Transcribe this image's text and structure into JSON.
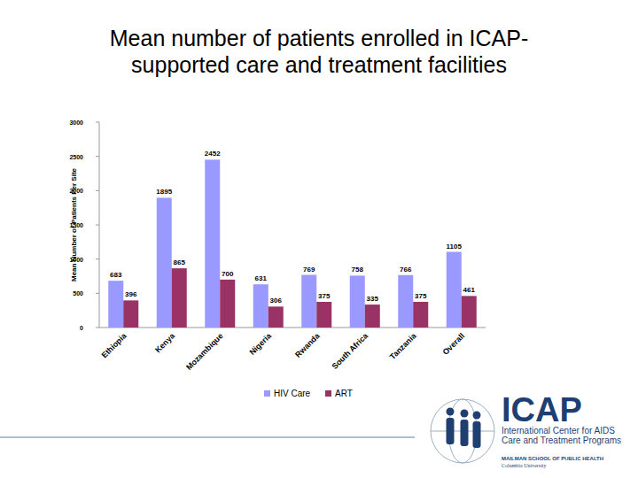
{
  "chart_data": {
    "type": "bar",
    "title": "Mean number of patients enrolled in ICAP-supported care and treatment facilities",
    "y_label": "Mean Number of Patients Per Site",
    "categories": [
      "Ethiopia",
      "Kenya",
      "Mozambique",
      "Nigeria",
      "Rwanda",
      "South Africa",
      "Tanzania",
      "Overall"
    ],
    "series": [
      {
        "name": "HIV Care",
        "color": "#9999ff",
        "values": [
          683,
          1895,
          2452,
          631,
          769,
          758,
          766,
          1105
        ]
      },
      {
        "name": "ART",
        "color": "#993366",
        "values": [
          396,
          865,
          700,
          306,
          375,
          335,
          375,
          461
        ]
      }
    ],
    "ylim": [
      0,
      3000
    ],
    "yticks": [
      0,
      500,
      1000,
      1500,
      2000,
      2500,
      3000
    ],
    "grid": false,
    "data_labels": true,
    "legend": "bottom"
  },
  "logo": {
    "name": "ICAP",
    "lines": [
      "International Center for AIDS",
      "Care and Treatment Programs"
    ],
    "school": "MAILMAN SCHOOL OF PUBLIC HEALTH",
    "university": "Columbia University"
  }
}
